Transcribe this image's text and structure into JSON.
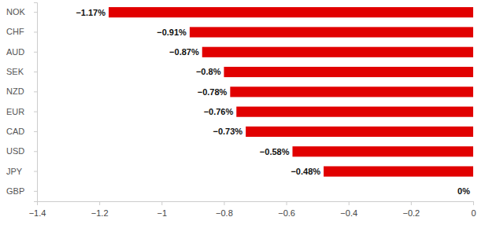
{
  "chart_data": {
    "type": "bar",
    "orientation": "horizontal",
    "categories": [
      "NOK",
      "CHF",
      "AUD",
      "SEK",
      "NZD",
      "EUR",
      "CAD",
      "USD",
      "JPY",
      "GBP"
    ],
    "values": [
      -1.17,
      -0.91,
      -0.87,
      -0.8,
      -0.78,
      -0.76,
      -0.73,
      -0.58,
      -0.48,
      0
    ],
    "value_labels": [
      "−1.17%",
      "−0.91%",
      "−0.87%",
      "−0.8%",
      "−0.78%",
      "−0.76%",
      "−0.73%",
      "−0.58%",
      "−0.48%",
      "0%"
    ],
    "data_labels": true,
    "color": "#e10000",
    "xlim": [
      -1.4,
      0
    ],
    "xticks": [
      {
        "value": -1.4,
        "label": "−1.4"
      },
      {
        "value": -1.2,
        "label": "−1.2"
      },
      {
        "value": -1,
        "label": "−1"
      },
      {
        "value": -0.8,
        "label": "−0.8"
      },
      {
        "value": -0.6,
        "label": "−0.6"
      },
      {
        "value": -0.4,
        "label": "−0.4"
      },
      {
        "value": -0.2,
        "label": "−0.2"
      },
      0
    ],
    "grid": false
  }
}
